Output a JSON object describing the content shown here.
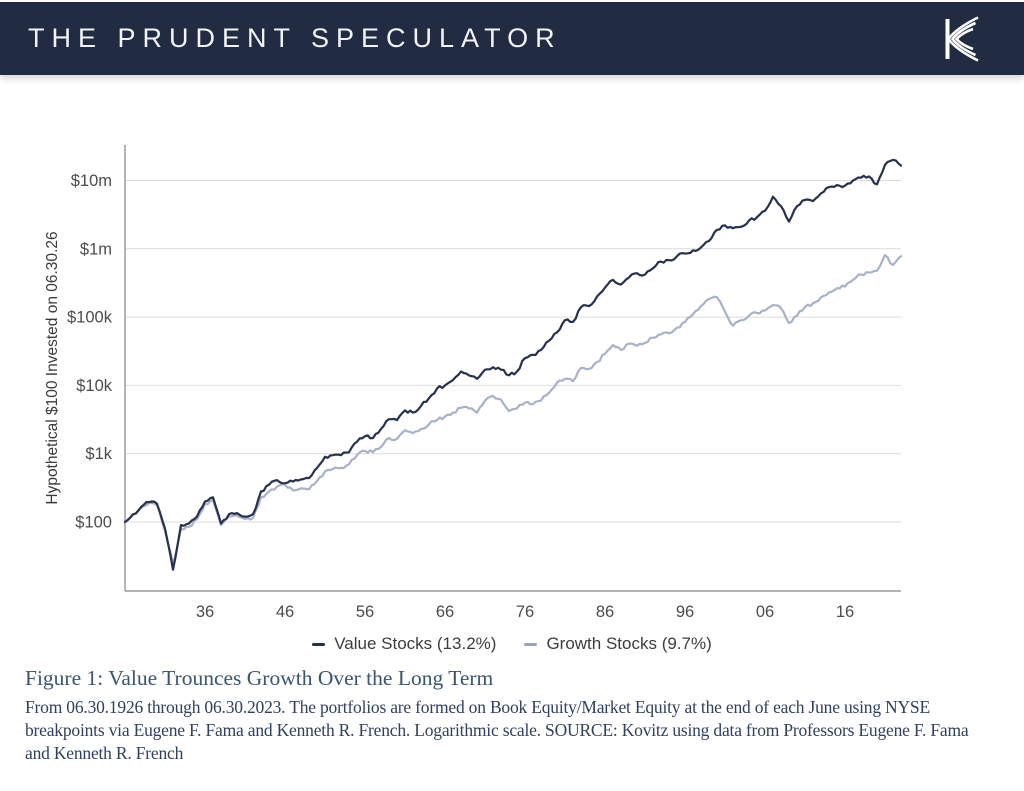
{
  "header": {
    "title": "THE PRUDENT SPECULATOR",
    "logo_icon": "kovitz-k-logo",
    "bg_color": "#212b42"
  },
  "chart": {
    "y_axis_title": "Hypothetical $100 Invested on 06.30.26",
    "y_ticks": [
      {
        "label": "$10m",
        "value": 10000000
      },
      {
        "label": "$1m",
        "value": 1000000
      },
      {
        "label": "$100k",
        "value": 100000
      },
      {
        "label": "$10k",
        "value": 10000
      },
      {
        "label": "$1k",
        "value": 1000
      },
      {
        "label": "$100",
        "value": 100
      }
    ],
    "x_ticks": [
      {
        "label": "36",
        "year": 1936
      },
      {
        "label": "46",
        "year": 1946
      },
      {
        "label": "56",
        "year": 1956
      },
      {
        "label": "66",
        "year": 1966
      },
      {
        "label": "76",
        "year": 1976
      },
      {
        "label": "86",
        "year": 1986
      },
      {
        "label": "96",
        "year": 1996
      },
      {
        "label": "06",
        "year": 2006
      },
      {
        "label": "16",
        "year": 2016
      }
    ],
    "legend": [
      {
        "label": "Value Stocks (13.2%)",
        "color": "#27304d"
      },
      {
        "label": "Growth Stocks (9.7%)",
        "color": "#9aa3bd"
      }
    ],
    "colors": {
      "grid": "#dcdcdc",
      "axis": "#9a9a9a",
      "tick_text": "#4c4c4c",
      "axis_title_text": "#3a3a3a"
    }
  },
  "chart_data": {
    "type": "line",
    "title": "",
    "xlabel": "",
    "ylabel": "Hypothetical $100 Invested on 06.30.26",
    "y_scale": "log",
    "ylim": [
      10,
      30000000
    ],
    "x_start_year": 1926,
    "x_end_year": 2023,
    "grid": "horizontal",
    "legend_position": "bottom",
    "x": [
      1926,
      1927,
      1928,
      1929,
      1930,
      1931,
      1932,
      1933,
      1934,
      1935,
      1936,
      1937,
      1938,
      1939,
      1940,
      1941,
      1942,
      1943,
      1944,
      1945,
      1946,
      1947,
      1948,
      1949,
      1950,
      1951,
      1952,
      1953,
      1954,
      1955,
      1956,
      1957,
      1958,
      1959,
      1960,
      1961,
      1962,
      1963,
      1964,
      1965,
      1966,
      1967,
      1968,
      1969,
      1970,
      1971,
      1972,
      1973,
      1974,
      1975,
      1976,
      1977,
      1978,
      1979,
      1980,
      1981,
      1982,
      1983,
      1984,
      1985,
      1986,
      1987,
      1988,
      1989,
      1990,
      1991,
      1992,
      1993,
      1994,
      1995,
      1996,
      1997,
      1998,
      1999,
      2000,
      2001,
      2002,
      2003,
      2004,
      2005,
      2006,
      2007,
      2008,
      2009,
      2010,
      2011,
      2012,
      2013,
      2014,
      2015,
      2016,
      2017,
      2018,
      2019,
      2020,
      2021,
      2022,
      2023
    ],
    "series": [
      {
        "name": "Value Stocks (13.2%)",
        "color": "#27304d",
        "values": [
          100,
          130,
          165,
          195,
          185,
          80,
          20,
          90,
          95,
          120,
          200,
          230,
          95,
          130,
          135,
          120,
          130,
          280,
          350,
          410,
          370,
          390,
          420,
          440,
          620,
          900,
          950,
          950,
          1050,
          1500,
          1800,
          1700,
          2300,
          3200,
          3100,
          4300,
          4000,
          5000,
          6500,
          9000,
          10000,
          12000,
          16000,
          14000,
          12500,
          17000,
          18500,
          17000,
          14000,
          16000,
          25000,
          28000,
          33000,
          45000,
          60000,
          90000,
          85000,
          140000,
          145000,
          200000,
          270000,
          350000,
          300000,
          380000,
          440000,
          420000,
          520000,
          650000,
          680000,
          780000,
          850000,
          950000,
          1050000,
          1300000,
          1900000,
          2200000,
          2000000,
          2100000,
          2600000,
          2900000,
          3600000,
          5800000,
          4200000,
          2500000,
          4200000,
          5200000,
          5000000,
          6500000,
          8000000,
          8600000,
          8400000,
          10000000,
          11000000,
          11500000,
          8800000,
          17000000,
          20000000,
          16500000
        ]
      },
      {
        "name": "Growth Stocks (9.7%)",
        "color": "#a8b1c8",
        "values": [
          100,
          128,
          160,
          190,
          175,
          75,
          24,
          80,
          85,
          110,
          185,
          210,
          90,
          120,
          125,
          110,
          115,
          230,
          280,
          330,
          350,
          290,
          310,
          300,
          400,
          550,
          600,
          620,
          700,
          950,
          1100,
          1050,
          1250,
          1700,
          1650,
          2200,
          2000,
          2300,
          2700,
          3100,
          3500,
          4000,
          4700,
          4600,
          4000,
          6000,
          7000,
          6200,
          4200,
          4600,
          5600,
          5300,
          6000,
          7800,
          11000,
          12500,
          11500,
          18000,
          17500,
          22000,
          29000,
          39000,
          33000,
          41000,
          38000,
          42000,
          50000,
          56000,
          58000,
          70000,
          85000,
          110000,
          145000,
          185000,
          195000,
          120000,
          75000,
          90000,
          105000,
          115000,
          125000,
          150000,
          135000,
          82000,
          105000,
          140000,
          160000,
          195000,
          230000,
          265000,
          280000,
          350000,
          420000,
          450000,
          480000,
          810000,
          580000,
          780000
        ]
      }
    ]
  },
  "caption": {
    "title": "Figure 1: Value Trounces Growth Over the Long Term",
    "body": "From 06.30.1926 through 06.30.2023. The portfolios are formed on Book Equity/Market Equity at the end of each June using NYSE breakpoints via Eugene F. Fama and Kenneth R. French. Logarithmic scale. SOURCE: Kovitz using data from Professors Eugene F. Fama and Kenneth R. French"
  }
}
